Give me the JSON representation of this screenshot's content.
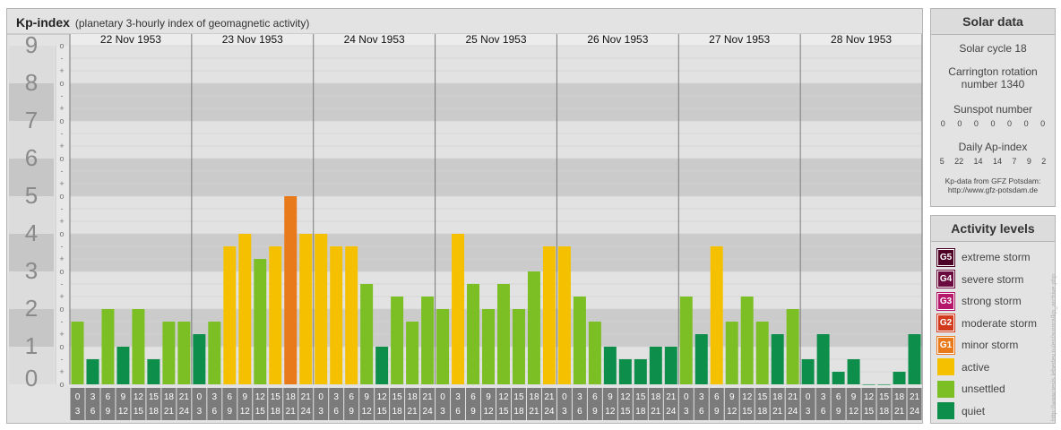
{
  "header": {
    "title": "Kp-index",
    "subtitle": "(planetary 3-hourly index of geomagnetic activity)"
  },
  "chart_data": {
    "type": "bar",
    "title": "Kp-index",
    "subtitle": "(planetary 3-hourly index of geomagnetic activity)",
    "days": [
      "22 Nov 1953",
      "23 Nov 1953",
      "24 Nov 1953",
      "25 Nov 1953",
      "26 Nov 1953",
      "27 Nov 1953",
      "28 Nov 1953"
    ],
    "interval_start_labels": [
      "0",
      "3",
      "6",
      "9",
      "12",
      "15",
      "18",
      "21"
    ],
    "interval_end_labels": [
      "3",
      "6",
      "9",
      "12",
      "15",
      "18",
      "21",
      "24"
    ],
    "y_tick_labels": [
      "0",
      "1",
      "2",
      "3",
      "4",
      "5",
      "6",
      "7",
      "8",
      "9"
    ],
    "y_subtick_labels": [
      "o",
      "+",
      "-"
    ],
    "ylim": [
      0,
      9
    ],
    "series": [
      {
        "values": [
          1.667,
          0.667,
          2.0,
          1.0,
          2.0,
          0.667,
          1.667,
          1.667,
          1.333,
          1.667,
          3.667,
          4.0,
          3.333,
          3.667,
          5.0,
          4.0,
          4.0,
          3.667,
          3.667,
          2.667,
          1.0,
          2.333,
          1.667,
          2.333,
          2.0,
          4.0,
          2.667,
          2.0,
          2.667,
          2.0,
          3.0,
          3.667,
          3.667,
          2.333,
          1.667,
          1.0,
          0.667,
          0.667,
          1.0,
          1.0,
          2.333,
          1.333,
          3.667,
          1.667,
          2.333,
          1.667,
          1.333,
          2.0,
          0.667,
          1.333,
          0.333,
          0.667,
          0.0,
          0.0,
          0.333,
          1.333
        ]
      }
    ],
    "grid": true
  },
  "solar": {
    "heading": "Solar data",
    "cycle": "Solar cycle 18",
    "carrington_line1": "Carrington rotation",
    "carrington_line2": "number 1340",
    "sunspot_label": "Sunspot number",
    "sunspot_values": [
      "0",
      "0",
      "0",
      "0",
      "0",
      "0",
      "0"
    ],
    "ap_label": "Daily Ap-index",
    "ap_values": [
      "5",
      "22",
      "14",
      "14",
      "7",
      "9",
      "2"
    ],
    "source_line1": "Kp-data from GFZ Potsdam:",
    "source_line2": "http://www.gfz-potsdam.de"
  },
  "activity": {
    "heading": "Activity levels",
    "levels": [
      {
        "code": "G5",
        "label": "extreme storm",
        "color": "#4d0026"
      },
      {
        "code": "G4",
        "label": "severe storm",
        "color": "#6b0a3e"
      },
      {
        "code": "G3",
        "label": "strong storm",
        "color": "#b5176b"
      },
      {
        "code": "G2",
        "label": "moderate storm",
        "color": "#d23a1d"
      },
      {
        "code": "G1",
        "label": "minor storm",
        "color": "#e87a1c"
      },
      {
        "code": "",
        "label": "active",
        "color": "#f5c000"
      },
      {
        "code": "",
        "label": "unsettled",
        "color": "#7cbf24"
      },
      {
        "code": "",
        "label": "quiet",
        "color": "#0d8f4b"
      }
    ]
  },
  "watermark": "http://www.tesis.lebedev.ru/en/aurora/kp_archive.php"
}
